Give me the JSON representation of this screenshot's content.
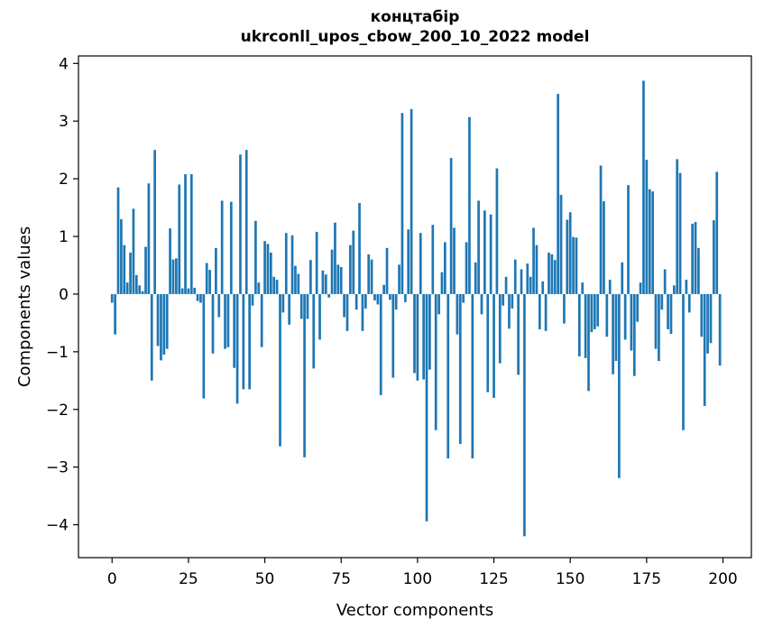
{
  "chart_data": {
    "type": "bar",
    "title": "концтабір",
    "subtitle": "ukrconll_upos_cbow_200_10_2022 model",
    "xlabel": "Vector components",
    "ylabel": "Components values",
    "x_start": 0,
    "bar_width": 0.8,
    "bar_color": "#1f77b4",
    "axis_color": "#000000",
    "xlim": [
      -11.0,
      209.3
    ],
    "ylim": [
      -4.57,
      4.13
    ],
    "xticks": [
      0,
      25,
      50,
      75,
      100,
      125,
      150,
      175,
      200
    ],
    "yticks": [
      -4,
      -3,
      -2,
      -1,
      0,
      1,
      2,
      3,
      4
    ],
    "grid": false,
    "legend": null,
    "values": [
      -0.15,
      -0.7,
      1.85,
      1.3,
      0.85,
      0.2,
      0.72,
      1.48,
      0.33,
      0.15,
      0.05,
      0.82,
      1.92,
      -1.5,
      2.5,
      -0.9,
      -1.15,
      -1.05,
      -0.95,
      1.14,
      0.6,
      0.62,
      1.9,
      0.1,
      2.08,
      0.1,
      2.08,
      0.11,
      -0.12,
      -0.15,
      -1.81,
      0.54,
      0.42,
      -1.03,
      0.8,
      -0.4,
      1.62,
      -0.95,
      -0.92,
      1.6,
      -1.28,
      -1.9,
      2.42,
      -1.65,
      2.5,
      -1.65,
      -0.2,
      1.27,
      0.2,
      -0.92,
      0.92,
      0.87,
      0.72,
      0.3,
      0.25,
      -2.64,
      -0.32,
      1.06,
      -0.53,
      1.02,
      0.49,
      0.35,
      -0.43,
      -2.83,
      -0.43,
      0.59,
      -1.29,
      1.08,
      -0.79,
      0.41,
      0.34,
      -0.06,
      0.77,
      1.24,
      0.51,
      0.47,
      -0.4,
      -0.64,
      0.85,
      1.1,
      -0.27,
      1.58,
      -0.64,
      -0.25,
      0.69,
      0.6,
      -0.11,
      -0.18,
      -1.75,
      0.16,
      0.8,
      -0.1,
      -1.45,
      -0.27,
      0.51,
      3.14,
      -0.14,
      1.12,
      3.21,
      -1.37,
      -1.5,
      1.06,
      -1.48,
      -3.94,
      -1.31,
      1.2,
      -2.36,
      -0.35,
      0.38,
      0.9,
      -2.85,
      2.36,
      1.15,
      -0.7,
      -2.6,
      -0.15,
      0.9,
      3.07,
      -2.85,
      0.55,
      1.62,
      -0.35,
      1.45,
      -1.7,
      1.38,
      -1.8,
      2.18,
      -1.2,
      -0.2,
      0.3,
      -0.6,
      -0.25,
      0.6,
      -1.4,
      0.43,
      -4.2,
      0.53,
      0.3,
      1.15,
      0.85,
      -0.61,
      0.22,
      -0.64,
      0.72,
      0.69,
      0.59,
      3.47,
      1.72,
      -0.51,
      1.29,
      1.42,
      0.99,
      0.98,
      -1.08,
      0.2,
      -1.11,
      -1.68,
      -0.66,
      -0.61,
      -0.56,
      2.23,
      1.61,
      -0.74,
      0.25,
      -1.39,
      -1.16,
      -3.19,
      0.55,
      -0.79,
      1.89,
      -0.98,
      -1.42,
      -0.48,
      0.2,
      3.7,
      2.33,
      1.82,
      1.78,
      -0.95,
      -1.16,
      -0.27,
      0.43,
      -0.61,
      -0.69,
      0.15,
      2.34,
      2.1,
      -2.36,
      0.25,
      -0.32,
      1.22,
      1.25,
      0.8,
      -0.74,
      -1.94,
      -1.03,
      -0.85,
      1.28,
      2.12,
      -1.24
    ]
  }
}
